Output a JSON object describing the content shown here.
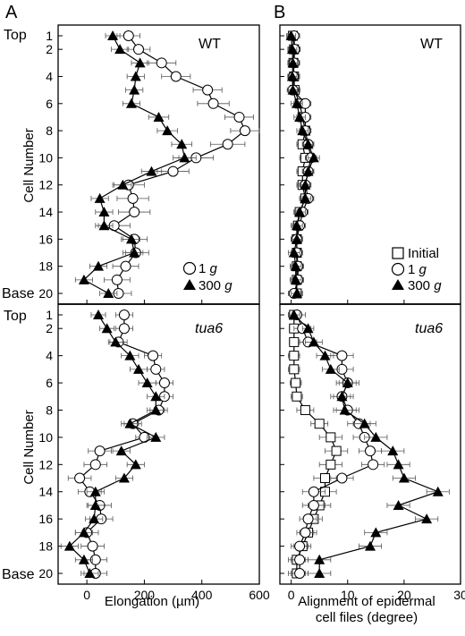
{
  "panel_letters": [
    "A",
    "B"
  ],
  "labels": {
    "top": "Top",
    "base": "Base",
    "cell_number": "Cell Number",
    "xlabel_A": "Elongation (µm)",
    "xlabel_B_line1": "Alignment of epidermal",
    "xlabel_B_line2": "cell files (degree)"
  },
  "legend": [
    {
      "symbol": "square",
      "text": "Initial",
      "unit": ""
    },
    {
      "symbol": "circle",
      "text": "1 ",
      "unit": "g"
    },
    {
      "symbol": "triangle",
      "text": "300 ",
      "unit": "g"
    }
  ],
  "colors": {
    "axis": "#000000",
    "open_fill": "#ffffff",
    "filled": "#000000",
    "separator": "#666666"
  },
  "chart_data": [
    {
      "id": "A-WT",
      "type": "line",
      "title": "WT",
      "xlim": [
        -100,
        600
      ],
      "ylim": [
        21,
        0
      ],
      "xticks": [
        0,
        200,
        400,
        600
      ],
      "yticks": [
        1,
        2,
        4,
        6,
        8,
        10,
        12,
        14,
        16,
        18,
        20
      ],
      "show_xticklabels": false,
      "series": [
        {
          "name": "1 g",
          "marker": "circle",
          "x": [
            145,
            180,
            260,
            310,
            420,
            440,
            530,
            550,
            490,
            380,
            300,
            145,
            160,
            165,
            95,
            165,
            170,
            135,
            105,
            110
          ],
          "err": [
            40,
            40,
            50,
            50,
            50,
            55,
            50,
            50,
            60,
            60,
            55,
            55,
            55,
            55,
            55,
            45,
            45,
            45,
            45,
            45
          ]
        },
        {
          "name": "300 g",
          "marker": "triangle",
          "x": [
            90,
            115,
            185,
            170,
            165,
            155,
            250,
            280,
            330,
            340,
            225,
            125,
            45,
            60,
            60,
            155,
            165,
            40,
            -10,
            75
          ],
          "err": [
            25,
            30,
            30,
            30,
            30,
            30,
            35,
            35,
            35,
            40,
            35,
            30,
            30,
            30,
            30,
            30,
            30,
            30,
            30,
            30
          ]
        }
      ]
    },
    {
      "id": "B-WT",
      "type": "line",
      "title": "WT",
      "xlim": [
        -2,
        30
      ],
      "ylim": [
        21,
        0
      ],
      "xticks": [
        0,
        10,
        20,
        30
      ],
      "yticks": [
        1,
        2,
        4,
        6,
        8,
        10,
        12,
        14,
        16,
        18,
        20
      ],
      "show_xticklabels": false,
      "series": [
        {
          "name": "Initial",
          "marker": "square",
          "x": [
            0.3,
            0.5,
            0.4,
            0.5,
            0.6,
            1.5,
            2,
            2.5,
            2,
            2.5,
            2,
            2,
            2.5,
            1.5,
            1.2,
            1,
            1,
            1,
            1,
            1
          ],
          "err": [
            1,
            1,
            1,
            1,
            1,
            1,
            1,
            1,
            1,
            1,
            1,
            1,
            1,
            1,
            1,
            1,
            1,
            1,
            1,
            1
          ]
        },
        {
          "name": "1 g",
          "marker": "circle",
          "x": [
            0.5,
            0.6,
            0.5,
            0.4,
            0.3,
            2.5,
            2.5,
            2.5,
            3,
            3.5,
            3,
            2.5,
            3,
            2,
            1.5,
            1,
            1,
            1.2,
            1.2,
            0.5
          ],
          "err": [
            1,
            1,
            1,
            1,
            1,
            1,
            1,
            1,
            1,
            1,
            1,
            1,
            1,
            1,
            1,
            1,
            1,
            1,
            1,
            1
          ]
        },
        {
          "name": "300 g",
          "marker": "triangle",
          "x": [
            0,
            0.2,
            0.3,
            0.2,
            0.3,
            1,
            1.5,
            2,
            3,
            4,
            3,
            2.5,
            2.5,
            1.5,
            1,
            1,
            0.5,
            0.8,
            0.8,
            1
          ],
          "err": [
            0.8,
            0.8,
            0.8,
            0.8,
            0.8,
            1,
            1,
            1,
            1,
            1,
            1,
            1,
            1,
            1,
            1,
            1,
            1,
            1,
            1,
            1
          ]
        }
      ]
    },
    {
      "id": "A-tua6",
      "type": "line",
      "title": "tua6",
      "xlim": [
        -100,
        600
      ],
      "ylim": [
        21,
        0
      ],
      "xticks": [
        0,
        200,
        400,
        600
      ],
      "yticks": [
        1,
        2,
        4,
        6,
        8,
        10,
        12,
        14,
        16,
        18,
        20
      ],
      "show_xticklabels": true,
      "series": [
        {
          "name": "1 g",
          "marker": "circle",
          "x": [
            130,
            130,
            110,
            230,
            240,
            270,
            270,
            250,
            160,
            200,
            45,
            30,
            -25,
            10,
            45,
            50,
            0,
            20,
            30,
            30
          ],
          "err": [
            30,
            30,
            30,
            30,
            30,
            30,
            30,
            30,
            30,
            30,
            40,
            40,
            40,
            40,
            40,
            40,
            40,
            40,
            40,
            40
          ]
        },
        {
          "name": "300 g",
          "marker": "triangle",
          "x": [
            40,
            70,
            100,
            150,
            180,
            210,
            240,
            240,
            150,
            240,
            120,
            170,
            130,
            30,
            30,
            25,
            -10,
            -60,
            -10,
            10
          ],
          "err": [
            25,
            25,
            25,
            30,
            30,
            30,
            30,
            30,
            30,
            30,
            30,
            30,
            30,
            30,
            30,
            30,
            30,
            30,
            30,
            30
          ]
        }
      ]
    },
    {
      "id": "B-tua6",
      "type": "line",
      "title": "tua6",
      "xlim": [
        -2,
        30
      ],
      "ylim": [
        21,
        0
      ],
      "xticks": [
        0,
        10,
        20,
        30
      ],
      "yticks": [
        1,
        2,
        4,
        6,
        8,
        10,
        12,
        14,
        16,
        18,
        20
      ],
      "show_xticklabels": true,
      "series": [
        {
          "name": "Initial",
          "marker": "square",
          "x": [
            0.5,
            0.5,
            0.5,
            0.5,
            0.5,
            0.8,
            1,
            2.5,
            5,
            7,
            8,
            7,
            6,
            6,
            5,
            4,
            3,
            2,
            1,
            1
          ],
          "err": [
            0.8,
            0.8,
            0.8,
            1,
            1,
            1,
            1,
            1.5,
            1.5,
            2,
            2,
            2,
            2,
            2,
            2,
            1.5,
            1.5,
            1.5,
            1.5,
            1.5
          ]
        },
        {
          "name": "1 g",
          "marker": "circle",
          "x": [
            1,
            2,
            3,
            9,
            9,
            10,
            9,
            10,
            12,
            13,
            14,
            14.5,
            9,
            4,
            4,
            3,
            2.5,
            1.5,
            1.5,
            1.5
          ],
          "err": [
            1.5,
            1.5,
            1.5,
            2,
            2,
            2,
            2,
            2,
            2,
            2,
            2,
            2,
            2,
            2,
            2,
            1.5,
            1.5,
            1.5,
            1.5,
            1.5
          ]
        },
        {
          "name": "300 g",
          "marker": "triangle",
          "x": [
            0.5,
            3,
            4,
            6,
            7,
            10,
            9,
            9.5,
            13,
            15,
            18,
            19,
            20,
            26,
            19,
            24,
            15,
            14,
            5,
            5
          ],
          "err": [
            1,
            1,
            1.5,
            1.5,
            1.5,
            1.5,
            1.5,
            2,
            2,
            2,
            2,
            2,
            2,
            2,
            2,
            2,
            2,
            2,
            2,
            2
          ]
        }
      ]
    }
  ]
}
